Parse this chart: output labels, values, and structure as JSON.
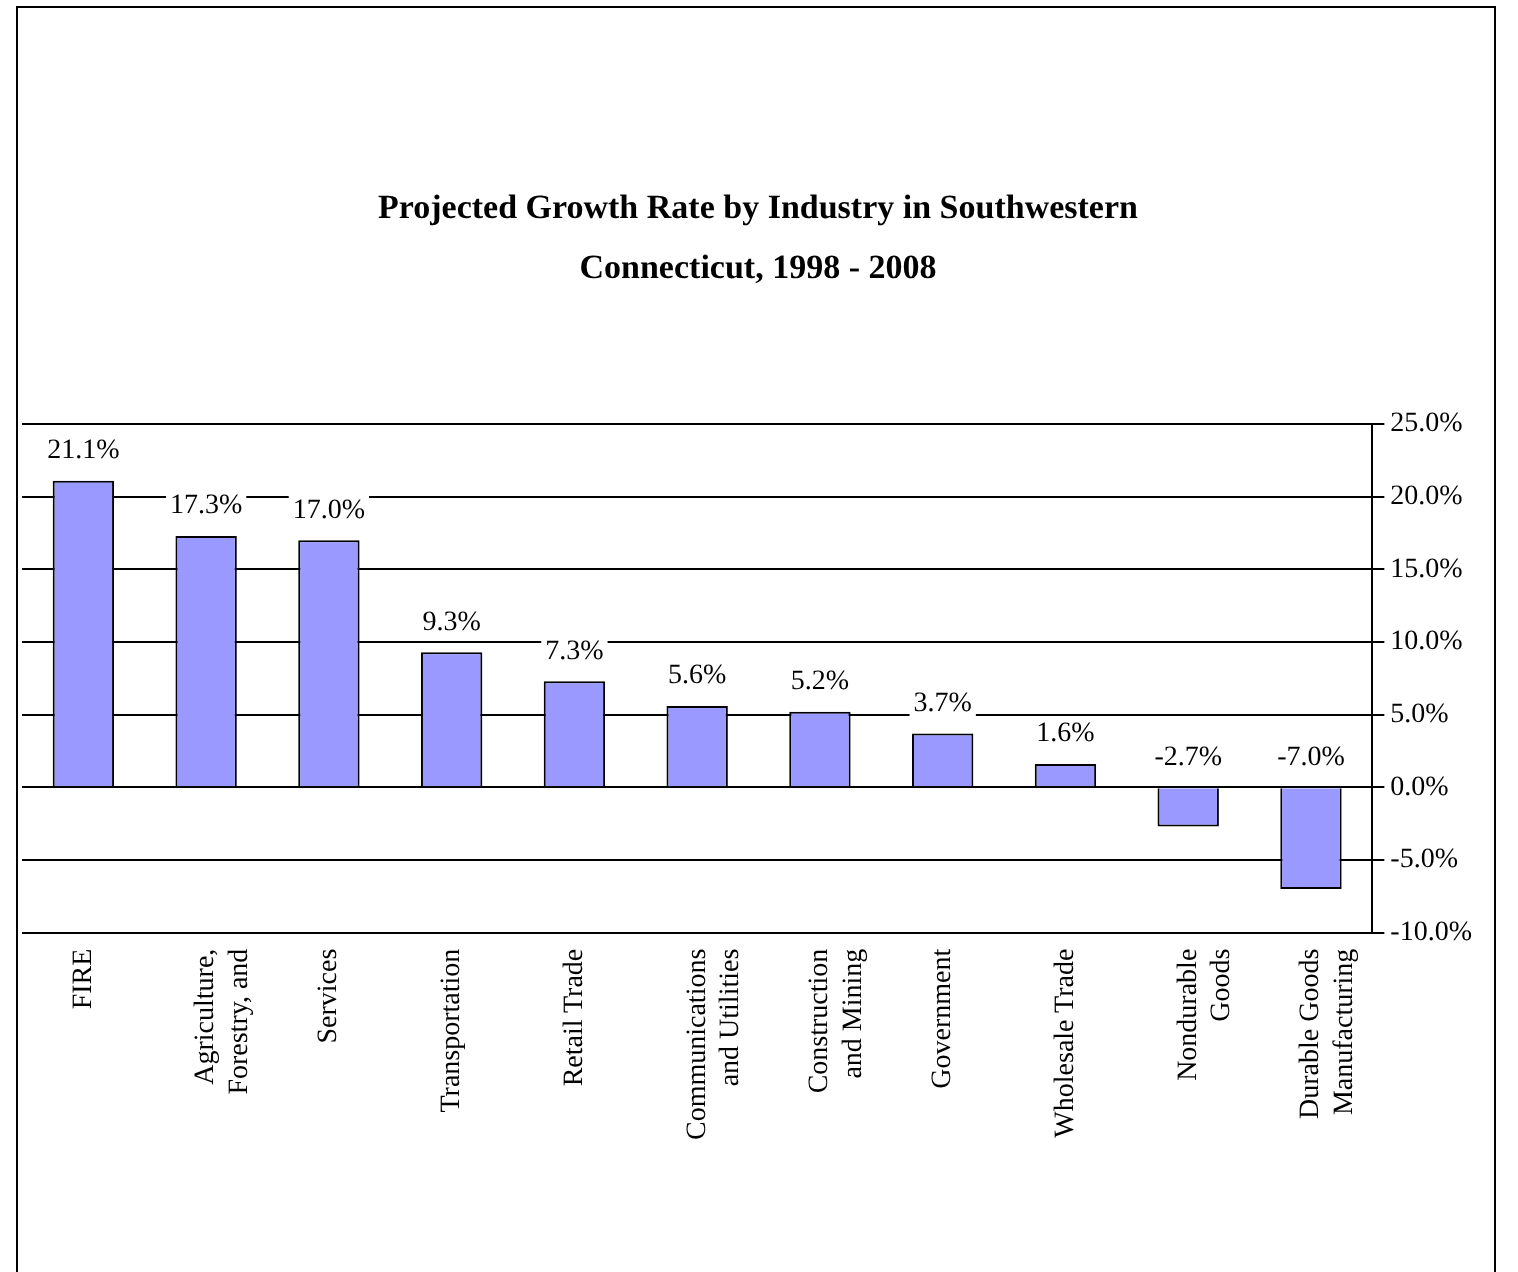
{
  "chart_data": {
    "type": "bar",
    "title": "Projected Growth Rate by Industry in Southwestern Connecticut, 1998 - 2008",
    "categories": [
      "FIRE",
      "Agriculture,\nForestry, and",
      "Services",
      "Transportation",
      "Retail Trade",
      "Communications\nand Utilities",
      "Construction\nand Mining",
      "Government",
      "Wholesale Trade",
      "Nondurable\nGoods",
      "Durable Goods\nManufacturing"
    ],
    "values": [
      21.1,
      17.3,
      17.0,
      9.3,
      7.3,
      5.6,
      5.2,
      3.7,
      1.6,
      -2.7,
      -7.0
    ],
    "value_labels": [
      "21.1%",
      "17.3%",
      "17.0%",
      "9.3%",
      "7.3%",
      "5.6%",
      "5.2%",
      "3.7%",
      "1.6%",
      "-2.7%",
      "-7.0%"
    ],
    "color": "#9999ff",
    "ylim": [
      -10,
      25
    ],
    "yticks": [
      {
        "value": -10,
        "label": "-10.0%"
      },
      {
        "value": -5,
        "label": "-5.0%"
      },
      {
        "value": 0,
        "label": "0.0%"
      },
      {
        "value": 5,
        "label": "5.0%"
      },
      {
        "value": 10,
        "label": "10.0%"
      },
      {
        "value": 15,
        "label": "15.0%"
      },
      {
        "value": 20,
        "label": "20.0%"
      },
      {
        "value": 25,
        "label": "25.0%"
      }
    ],
    "grid": "y",
    "legend": false
  }
}
